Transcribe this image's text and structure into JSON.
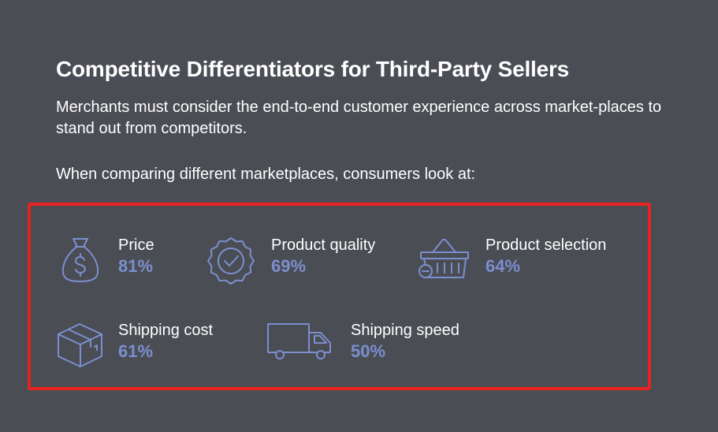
{
  "header": {
    "title": "Competitive Differentiators for Third-Party Sellers",
    "subtitle": "Merchants must consider the end-to-end customer experience across market-places to stand out from competitors.",
    "lead": "When comparing different marketplaces, consumers look at:"
  },
  "colors": {
    "background": "#4b4d54",
    "text": "#ffffff",
    "accent": "#7b8fcf",
    "highlight_border": "#e8231f"
  },
  "stats": [
    {
      "label": "Price",
      "value": "81%",
      "percent": 81,
      "icon": "money-bag-icon"
    },
    {
      "label": "Product quality",
      "value": "69%",
      "percent": 69,
      "icon": "verified-badge-icon"
    },
    {
      "label": "Product selection",
      "value": "64%",
      "percent": 64,
      "icon": "shopping-basket-icon"
    },
    {
      "label": "Shipping cost",
      "value": "61%",
      "percent": 61,
      "icon": "package-box-icon"
    },
    {
      "label": "Shipping speed",
      "value": "50%",
      "percent": 50,
      "icon": "delivery-truck-icon"
    }
  ]
}
